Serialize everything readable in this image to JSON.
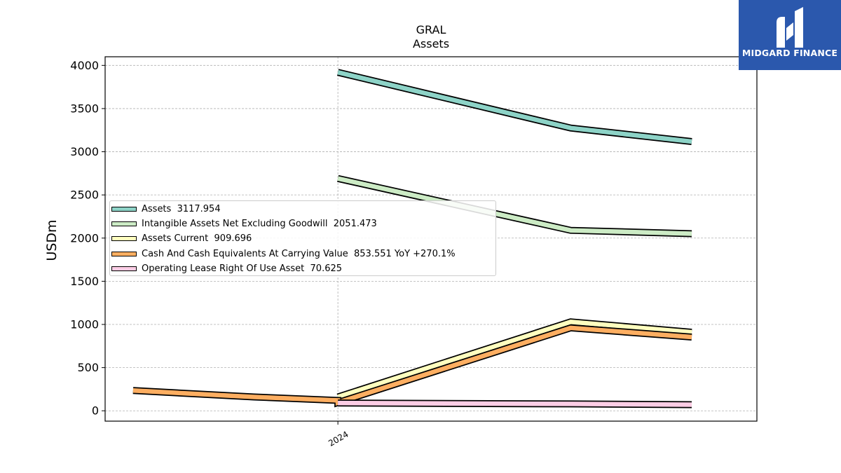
{
  "brand": {
    "name": "MIDGARD FINANCE",
    "logo_icon": "midgard-logo-icon",
    "color": "#2b58ad"
  },
  "chart_data": {
    "type": "line",
    "title": "GRAL",
    "subtitle": "Assets",
    "ylabel": "USDm",
    "xlabel": "",
    "ylim": [
      -120,
      4100
    ],
    "yticks": [
      0,
      500,
      1000,
      1500,
      2000,
      2500,
      3000,
      3500,
      4000
    ],
    "x_range": [
      0,
      7
    ],
    "xticks": [
      {
        "x": 2.5,
        "label": "2024"
      }
    ],
    "grid": true,
    "legend_position": "center-left",
    "series": [
      {
        "name": "Assets",
        "legend": "Assets  3117.954",
        "color": "#8dd3c7",
        "points": [
          [
            2.5,
            3920
          ],
          [
            5.0,
            3275
          ],
          [
            6.3,
            3118
          ]
        ]
      },
      {
        "name": "Intangible Assets Net Excluding Goodwill",
        "legend": "Intangible Assets Net Excluding Goodwill  2051.473",
        "color": "#ccebc5",
        "points": [
          [
            2.5,
            2690
          ],
          [
            5.0,
            2090
          ],
          [
            6.3,
            2051
          ]
        ]
      },
      {
        "name": "Assets Current",
        "legend": "Assets Current  909.696",
        "color": "#ffffbf",
        "points": [
          [
            2.5,
            160
          ],
          [
            5.0,
            1030
          ],
          [
            6.3,
            910
          ]
        ]
      },
      {
        "name": "Cash And Cash Equivalents At Carrying Value",
        "legend": "Cash And Cash Equivalents At Carrying Value  853.551 YoY +270.1%",
        "color": "#fdae61",
        "points": [
          [
            0.3,
            235
          ],
          [
            1.6,
            160
          ],
          [
            2.5,
            120
          ],
          [
            2.5,
            95
          ],
          [
            5.0,
            960
          ],
          [
            6.3,
            854
          ]
        ]
      },
      {
        "name": "Operating Lease Right Of Use Asset",
        "legend": "Operating Lease Right Of Use Asset  70.625",
        "color": "#fccde5",
        "points": [
          [
            2.5,
            90
          ],
          [
            5.0,
            80
          ],
          [
            6.3,
            71
          ]
        ]
      }
    ]
  }
}
